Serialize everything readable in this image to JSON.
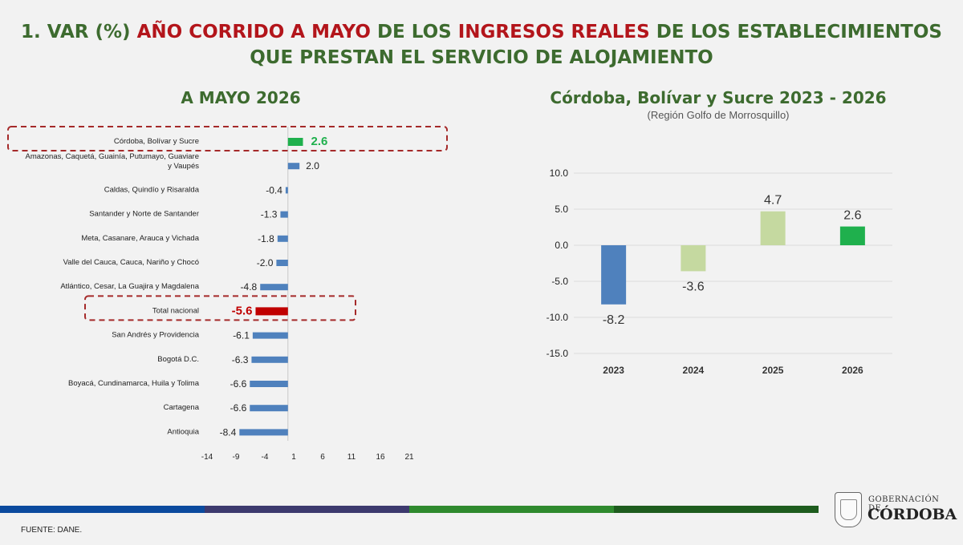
{
  "title": {
    "part1": "1. VAR (%) ",
    "part2": "AÑO CORRIDO A MAYO",
    "part3": " DE LOS ",
    "part4": "INGRESOS REALES",
    "part5": " DE LOS ESTABLECIMIENTOS",
    "line2": "QUE PRESTAN EL SERVICIO DE ALOJAMIENTO"
  },
  "colors": {
    "bar_default": "#4f81bd",
    "bar_highlight_green": "#1fb04d",
    "bar_highlight_red": "#c00000",
    "bar_light_green": "#c5d9a0",
    "highlight_box": "#a52a2a"
  },
  "chart_data": [
    {
      "type": "bar",
      "orientation": "horizontal",
      "title": "A MAYO 2026",
      "categories": [
        "Córdoba, Bolívar y Sucre",
        "Amazonas, Caquetá, Guainía, Putumayo, Guaviare y Vaupés",
        "Caldas, Quindío y Risaralda",
        "Santander y Norte de Santander",
        "Meta, Casanare, Arauca y Vichada",
        "Valle del Cauca, Cauca, Nariño y Chocó",
        "Atlántico, Cesar, La Guajira y Magdalena",
        "Total nacional",
        "San Andrés y Providencia",
        "Bogotá D.C.",
        "Boyacá, Cundinamarca, Huila y Tolima",
        "Cartagena",
        "Antioquia"
      ],
      "values": [
        2.6,
        2.0,
        -0.4,
        -1.3,
        -1.8,
        -2.0,
        -4.8,
        -5.6,
        -6.1,
        -6.3,
        -6.6,
        -6.6,
        -8.4
      ],
      "value_labels": [
        "2.6",
        "2.0",
        "-0.4",
        "-1.3",
        "-1.8",
        "-2.0",
        "-4.8",
        "-5.6",
        "-6.1",
        "-6.3",
        "-6.6",
        "-6.6",
        "-8.4"
      ],
      "highlighted": [
        "Córdoba, Bolívar y Sucre",
        "Total nacional"
      ],
      "xticks": [
        "-14",
        "-9",
        "-4",
        "1",
        "6",
        "11",
        "16",
        "21"
      ],
      "xlim": [
        -14,
        21
      ]
    },
    {
      "type": "bar",
      "title": "Córdoba, Bolívar y Sucre 2023 - 2026",
      "subtitle": "(Región Golfo de Morrosquillo)",
      "categories": [
        "2023",
        "2024",
        "2025",
        "2026"
      ],
      "values": [
        -8.2,
        -3.6,
        4.7,
        2.6
      ],
      "value_labels": [
        "-8.2",
        "-3.6",
        "4.7",
        "2.6"
      ],
      "yticks": [
        "10.0",
        "5.0",
        "0.0",
        "-5.0",
        "-10.0",
        "-15.0"
      ],
      "ylim": [
        -15,
        10
      ]
    }
  ],
  "footer": {
    "source": "FUENTE: DANE."
  },
  "logo": {
    "line1": "GOBERNACIÓN DE",
    "line2": "CÓRDOBA"
  },
  "stripe_colors": [
    "#0b4a9e",
    "#3d3a6e",
    "#2f8a2e",
    "#1e5c1e"
  ]
}
